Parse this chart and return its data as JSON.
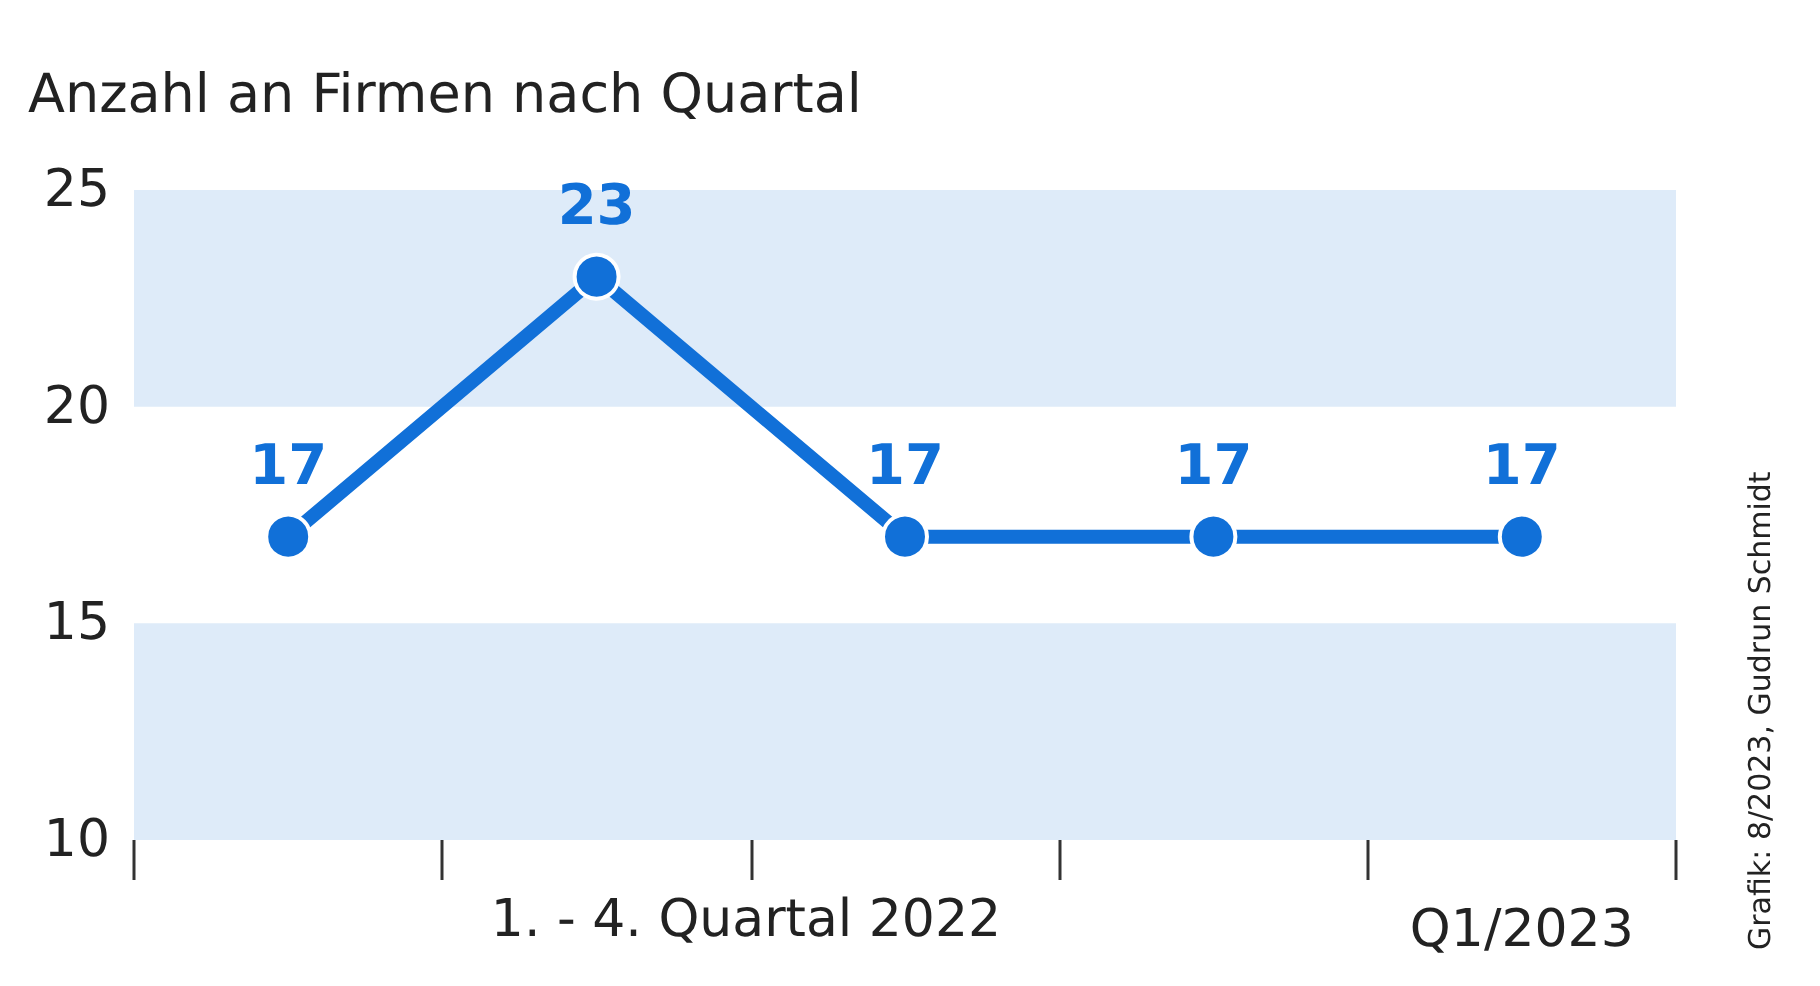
{
  "chart_data": {
    "type": "line",
    "title": "Anzahl an Firmen nach Quartal",
    "categories": [
      null,
      null,
      null,
      null,
      "Q1/2023"
    ],
    "series": [
      {
        "color": "#1170d8",
        "values": [
          17,
          23,
          17,
          17,
          17
        ]
      }
    ],
    "ylim": [
      10,
      25
    ],
    "yticks": [
      10,
      15,
      20,
      25
    ],
    "bands": [
      {
        "axis": "y",
        "from": 20,
        "to": 25,
        "color": "#deebf9"
      },
      {
        "axis": "y",
        "from": 10,
        "to": 15,
        "color": "#deebf9"
      }
    ],
    "data_labels": true,
    "marker": "circle",
    "line_style": "solid",
    "grid": false,
    "annotations": [
      "1. - 4. Quartal 2022",
      "Grafik: 8/2023, Gudrun Schmidt"
    ]
  }
}
